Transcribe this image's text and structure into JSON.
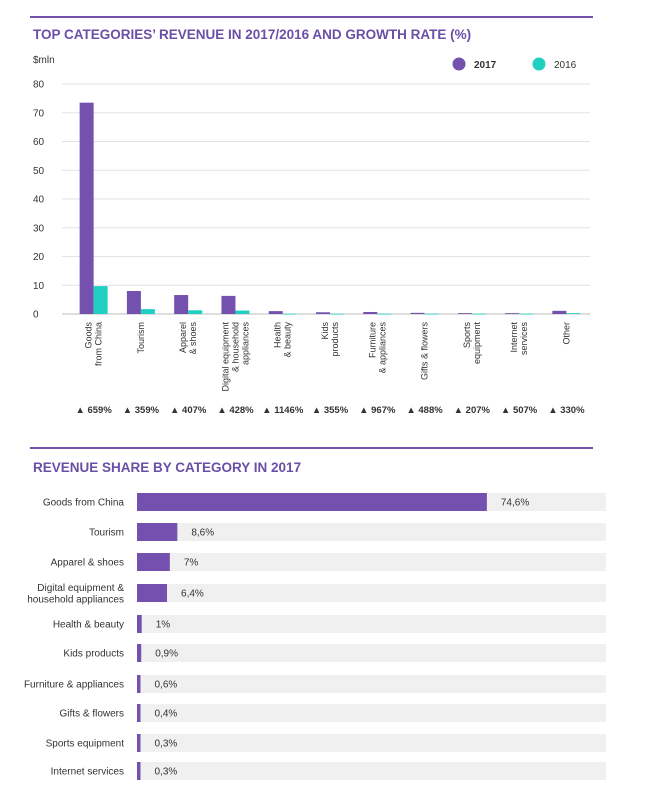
{
  "colors": {
    "c2017": "#7451ae",
    "c2016": "#20cfc2",
    "accent": "#6a4fa6",
    "track": "#f0f0f0"
  },
  "chart_data": [
    {
      "type": "bar",
      "title": "TOP CATEGORIES’ REVENUE IN 2017/2016 AND GROWTH RATE (%)",
      "ylabel": "$mln",
      "ylim": [
        0,
        80
      ],
      "yticks": [
        0,
        10,
        20,
        30,
        40,
        50,
        60,
        70,
        80
      ],
      "grid": true,
      "legend": "top-right",
      "categories": [
        [
          "Goods",
          "from China"
        ],
        [
          "Tourism"
        ],
        [
          "Apparel",
          "& shoes"
        ],
        [
          "Digital equipment",
          "& household",
          "appliances"
        ],
        [
          "Health",
          "& beauty"
        ],
        [
          "Kids",
          "products"
        ],
        [
          "Furniture",
          "& appliances"
        ],
        [
          "Gifts & flowers"
        ],
        [
          "Sports",
          "equipment"
        ],
        [
          "Internet",
          "services"
        ],
        [
          "Other"
        ]
      ],
      "series": [
        {
          "name": "2017",
          "values": [
            73.5,
            8.0,
            6.6,
            6.3,
            1.0,
            0.6,
            0.7,
            0.4,
            0.3,
            0.3,
            1.1
          ]
        },
        {
          "name": "2016",
          "values": [
            9.7,
            1.7,
            1.3,
            1.2,
            0.1,
            0.1,
            0.1,
            0.1,
            0.1,
            0.1,
            0.3
          ]
        }
      ],
      "growth": [
        "▲ 659%",
        "▲ 359%",
        "▲ 407%",
        "▲ 428%",
        "▲ 1146%",
        "▲ 355%",
        "▲ 967%",
        "▲ 488%",
        "▲ 207%",
        "▲ 507%",
        "▲ 330%"
      ]
    },
    {
      "type": "bar",
      "orientation": "horizontal",
      "title": "REVENUE SHARE BY CATEGORY IN 2017",
      "xlim": [
        0,
        100
      ],
      "categories": [
        [
          "Goods from China"
        ],
        [
          "Tourism"
        ],
        [
          "Apparel & shoes"
        ],
        [
          "Digital equipment &",
          "household appliances"
        ],
        [
          "Health & beauty"
        ],
        [
          "Kids products"
        ],
        [
          "Furniture & appliances"
        ],
        [
          "Gifts & flowers"
        ],
        [
          "Sports equipment"
        ],
        [
          "Internet services"
        ]
      ],
      "values": [
        74.6,
        8.6,
        7,
        6.4,
        1,
        0.9,
        0.6,
        0.4,
        0.3,
        0.3
      ],
      "value_labels": [
        "74,6%",
        "8,6%",
        "7%",
        "6,4%",
        "1%",
        "0,9%",
        "0,6%",
        "0,4%",
        "0,3%",
        "0,3%"
      ]
    }
  ]
}
